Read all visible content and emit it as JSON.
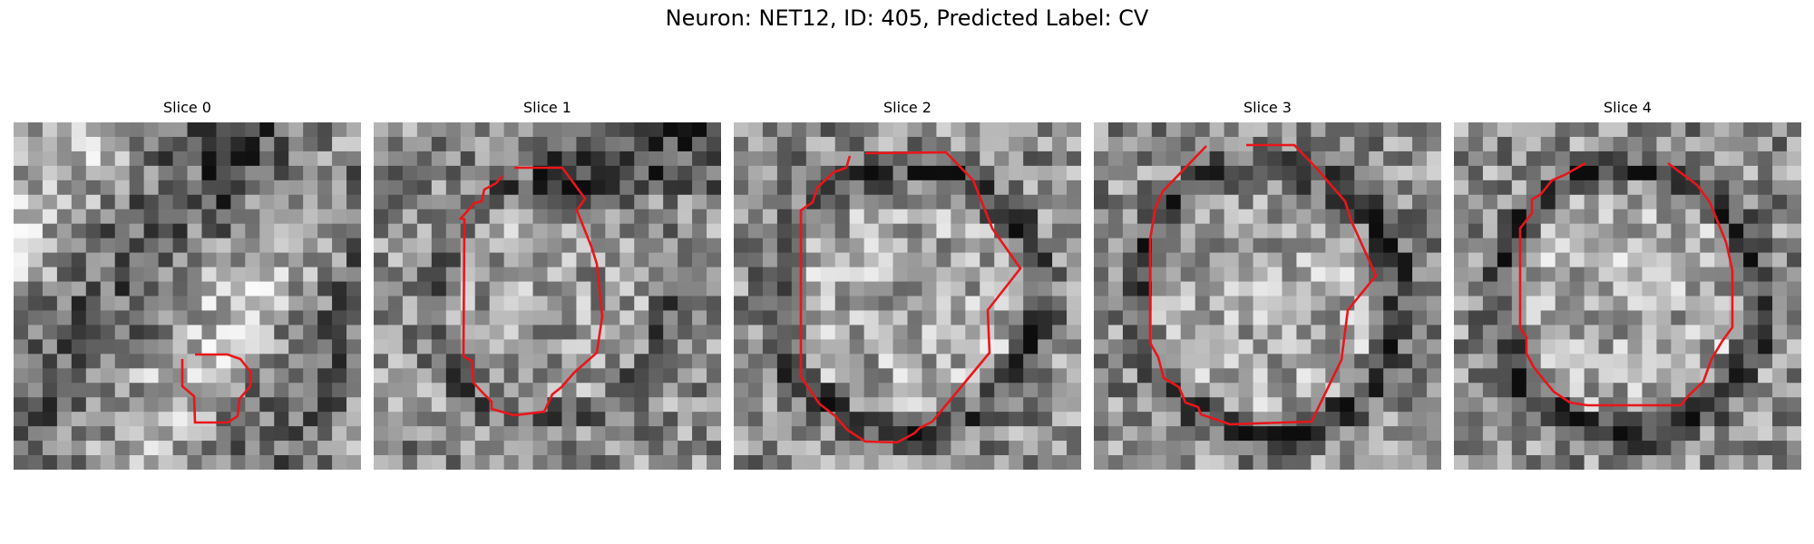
{
  "figure": {
    "title": "Neuron: NET12, ID: 405, Predicted Label: CV"
  },
  "panels": [
    {
      "title": "Slice 0",
      "contour_color": "#e8161b",
      "ring_strength": 0.0
    },
    {
      "title": "Slice 1",
      "contour_color": "#e8161b",
      "ring_strength": 0.55
    },
    {
      "title": "Slice 2",
      "contour_color": "#e8161b",
      "ring_strength": 0.9
    },
    {
      "title": "Slice 3",
      "contour_color": "#e8161b",
      "ring_strength": 0.9
    },
    {
      "title": "Slice 4",
      "contour_color": "#e8161b",
      "ring_strength": 1.0
    }
  ],
  "colormap": "gray"
}
